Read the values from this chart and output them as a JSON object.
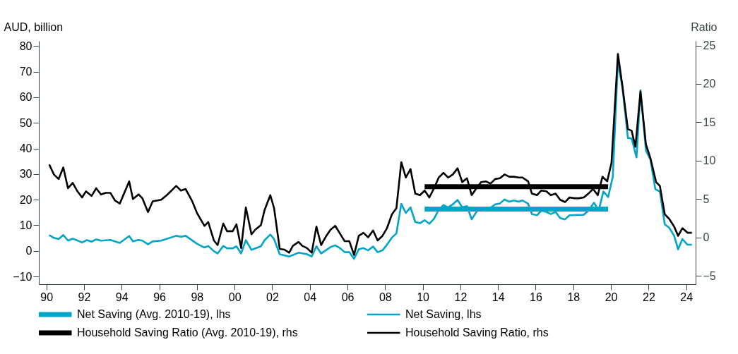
{
  "chart_data": {
    "type": "line",
    "ylabel": "AUD, billion",
    "y2label": "Ratio",
    "xlim": [
      1989.6,
      2024.5
    ],
    "xticks": [
      {
        "value": 1990,
        "label": "90"
      },
      {
        "value": 1992,
        "label": "92"
      },
      {
        "value": 1994,
        "label": "94"
      },
      {
        "value": 1996,
        "label": "96"
      },
      {
        "value": 1998,
        "label": "98"
      },
      {
        "value": 2000,
        "label": "00"
      },
      {
        "value": 2002,
        "label": "02"
      },
      {
        "value": 2004,
        "label": "04"
      },
      {
        "value": 2006,
        "label": "06"
      },
      {
        "value": 2008,
        "label": "08"
      },
      {
        "value": 2010,
        "label": "10"
      },
      {
        "value": 2012,
        "label": "12"
      },
      {
        "value": 2014,
        "label": "14"
      },
      {
        "value": 2016,
        "label": "16"
      },
      {
        "value": 2018,
        "label": "18"
      },
      {
        "value": 2020,
        "label": "20"
      },
      {
        "value": 2022,
        "label": "22"
      },
      {
        "value": 2024,
        "label": "24"
      }
    ],
    "ylim": [
      -13,
      82
    ],
    "yticks": [
      -10,
      0,
      10,
      20,
      30,
      40,
      50,
      60,
      70,
      80
    ],
    "y2lim": [
      -6.1,
      25.6
    ],
    "y2ticks": [
      -5,
      0,
      5,
      10,
      15,
      20,
      25
    ],
    "grid": false,
    "legend": "bottom",
    "series": [
      {
        "name": "Net Saving (Avg. 2010-19), lhs",
        "color": "#00a5c8",
        "x": [
          2010.1,
          2019.85
        ],
        "values": [
          16.3,
          16.3
        ]
      },
      {
        "name": "Net Saving, lhs",
        "color": "#00a5c8",
        "x": [
          1990.15,
          1990.4,
          1990.65,
          1990.9,
          1991.15,
          1991.4,
          1991.9,
          1992.15,
          1992.4,
          1992.65,
          1992.9,
          1993.4,
          1993.9,
          1994.4,
          1994.6,
          1994.9,
          1995.1,
          1995.4,
          1995.65,
          1996.1,
          1996.9,
          1997.15,
          1997.4,
          1998.0,
          1998.4,
          1998.6,
          1998.9,
          1999.1,
          1999.4,
          1999.6,
          1999.9,
          2000.1,
          2000.35,
          2000.6,
          2000.9,
          2001.4,
          2001.6,
          2001.9,
          2002.1,
          2002.4,
          2002.9,
          2003.4,
          2003.85,
          2004.1,
          2004.35,
          2004.6,
          2005.1,
          2005.35,
          2005.6,
          2005.85,
          2006.1,
          2006.35,
          2006.6,
          2006.85,
          2007.1,
          2007.36,
          2007.6,
          2007.86,
          2008.1,
          2008.36,
          2008.6,
          2008.86,
          2009.1,
          2009.35,
          2009.6,
          2009.85,
          2010.1,
          2010.35,
          2010.6,
          2010.85,
          2011.1,
          2011.35,
          2011.6,
          2011.85,
          2012.1,
          2012.35,
          2012.6,
          2012.85,
          2013.1,
          2013.6,
          2013.85,
          2014.1,
          2014.35,
          2014.6,
          2014.85,
          2015.1,
          2015.3,
          2015.6,
          2015.8,
          2016.07,
          2016.3,
          2016.57,
          2016.8,
          2017.06,
          2017.3,
          2017.56,
          2017.8,
          2018.56,
          2018.8,
          2019.1,
          2019.35,
          2019.6,
          2019.85,
          2020.1,
          2020.37,
          2020.6,
          2020.9,
          2021.1,
          2021.36,
          2021.57,
          2021.86,
          2022.1,
          2022.36,
          2022.6,
          2022.86,
          2023.1,
          2023.36,
          2023.57,
          2023.8,
          2024.07,
          2024.3
        ],
        "values": [
          6.2,
          5.1,
          4.6,
          6.2,
          4.0,
          4.8,
          3.3,
          4.2,
          3.6,
          4.5,
          4.0,
          4.3,
          3.1,
          5.8,
          3.7,
          4.3,
          4.0,
          2.6,
          3.7,
          4.0,
          5.9,
          5.5,
          5.9,
          2.8,
          1.3,
          1.9,
          -0.1,
          -1.0,
          1.9,
          1.0,
          1.0,
          1.8,
          -1.0,
          4.2,
          0.4,
          1.8,
          4.2,
          6.4,
          4.6,
          -1.3,
          -2.2,
          -0.7,
          -1.3,
          -2.2,
          1.8,
          -1.0,
          1.5,
          2.2,
          1.1,
          -0.5,
          -0.5,
          -3.1,
          0.6,
          1.1,
          0.2,
          1.7,
          -0.5,
          0.2,
          2.4,
          5.2,
          6.8,
          18.4,
          14.8,
          17.0,
          11.3,
          10.8,
          12.0,
          10.6,
          12.6,
          16.1,
          17.9,
          17.0,
          18.2,
          19.9,
          17.0,
          17.5,
          12.3,
          15.2,
          16.8,
          16.8,
          18.2,
          18.5,
          20.1,
          19.2,
          19.7,
          19.2,
          19.7,
          18.4,
          14.4,
          13.9,
          15.7,
          15.2,
          14.4,
          15.2,
          12.8,
          12.3,
          13.9,
          14.1,
          15.7,
          18.8,
          15.8,
          23.2,
          21.0,
          29.0,
          73.8,
          64.4,
          44.1,
          43.9,
          36.5,
          62.7,
          39.2,
          35.6,
          24.1,
          23.2,
          10.4,
          9.0,
          5.9,
          0.6,
          4.6,
          2.4,
          2.4
        ]
      },
      {
        "name": "Household Saving Ratio (Avg. 2010-19), rhs",
        "color": "#000000",
        "axis": "y2",
        "x": [
          2010.1,
          2019.85
        ],
        "values": [
          6.6,
          6.6
        ]
      },
      {
        "name": "Household Saving Ratio, rhs",
        "color": "#000000",
        "axis": "y2",
        "x": [
          1990.15,
          1990.4,
          1990.65,
          1990.9,
          1991.15,
          1991.4,
          1991.65,
          1991.9,
          1992.1,
          1992.4,
          1992.65,
          1992.9,
          1993.15,
          1993.4,
          1993.65,
          1993.9,
          1994.4,
          1994.6,
          1994.9,
          1995.1,
          1995.4,
          1995.65,
          1996.1,
          1996.4,
          1996.9,
          1997.15,
          1997.4,
          1997.75,
          1998.0,
          1998.4,
          1998.6,
          1998.9,
          1999.1,
          1999.4,
          1999.6,
          1999.9,
          2000.1,
          2000.35,
          2000.6,
          2000.9,
          2001.1,
          2001.4,
          2001.6,
          2001.9,
          2002.1,
          2002.4,
          2002.65,
          2002.9,
          2003.1,
          2003.4,
          2003.6,
          2003.85,
          2004.1,
          2004.35,
          2004.6,
          2004.85,
          2005.1,
          2005.35,
          2005.6,
          2005.85,
          2006.1,
          2006.35,
          2006.6,
          2006.85,
          2007.1,
          2007.36,
          2007.6,
          2007.86,
          2008.1,
          2008.36,
          2008.6,
          2008.86,
          2009.1,
          2009.35,
          2009.6,
          2009.85,
          2010.1,
          2010.35,
          2010.6,
          2010.85,
          2011.1,
          2011.35,
          2011.6,
          2011.85,
          2012.1,
          2012.35,
          2012.6,
          2012.85,
          2013.1,
          2013.35,
          2013.6,
          2013.85,
          2014.1,
          2014.35,
          2014.6,
          2014.85,
          2015.1,
          2015.3,
          2015.6,
          2015.8,
          2016.07,
          2016.3,
          2016.57,
          2016.8,
          2017.06,
          2017.3,
          2017.56,
          2017.8,
          2018.06,
          2018.3,
          2018.56,
          2018.8,
          2019.05,
          2019.3,
          2019.55,
          2019.8,
          2020.03,
          2020.37,
          2020.6,
          2020.9,
          2021.1,
          2021.3,
          2021.57,
          2021.86,
          2022.1,
          2022.4,
          2022.6,
          2022.86,
          2023.1,
          2023.36,
          2023.57,
          2023.8,
          2024.07,
          2024.3
        ],
        "values": [
          9.5,
          8.2,
          7.6,
          9.1,
          6.4,
          7.1,
          6.0,
          5.2,
          6.0,
          5.4,
          6.4,
          5.6,
          5.8,
          5.8,
          4.8,
          4.4,
          7.3,
          5.0,
          5.6,
          5.1,
          3.3,
          4.7,
          4.9,
          5.5,
          6.7,
          6.1,
          6.3,
          4.7,
          3.2,
          1.5,
          2.0,
          -0.4,
          -1.0,
          1.8,
          0.8,
          0.8,
          1.7,
          -1.4,
          3.9,
          0.4,
          1.0,
          1.6,
          3.6,
          5.5,
          3.8,
          -1.5,
          -1.6,
          -2.0,
          -1.1,
          -0.6,
          -1.1,
          -1.4,
          -2.0,
          1.4,
          -1.0,
          0.1,
          1.0,
          1.5,
          0.5,
          -0.5,
          -0.5,
          -2.3,
          0.2,
          0.6,
          0.0,
          0.9,
          -0.4,
          0.2,
          1.2,
          3.0,
          3.8,
          9.8,
          7.8,
          8.9,
          5.7,
          5.5,
          6.1,
          5.2,
          6.4,
          7.8,
          8.4,
          7.8,
          8.2,
          9.0,
          7.2,
          7.7,
          5.5,
          6.4,
          7.2,
          7.3,
          7.0,
          7.6,
          7.7,
          8.2,
          7.9,
          7.9,
          7.8,
          7.8,
          7.3,
          5.7,
          5.5,
          6.1,
          6.0,
          5.5,
          5.7,
          4.9,
          4.6,
          5.2,
          5.1,
          5.1,
          5.2,
          5.7,
          6.3,
          5.5,
          7.9,
          7.3,
          9.7,
          23.9,
          19.9,
          14.1,
          13.9,
          11.8,
          19.0,
          12.1,
          10.3,
          7.2,
          6.7,
          3.0,
          2.4,
          1.4,
          0.2,
          1.2,
          0.6,
          0.6
        ]
      }
    ]
  }
}
